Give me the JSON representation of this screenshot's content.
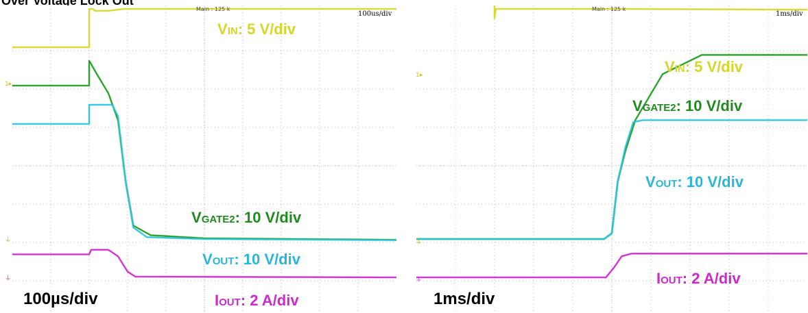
{
  "page_title": "Over Voltage Lock Out",
  "chart_data": [
    {
      "type": "line",
      "title": "",
      "header": {
        "main": "Main : 125 k",
        "time_per_div": "100us/div"
      },
      "timebase_label": "100µs/div",
      "x": {
        "unit": "div",
        "range": [
          0,
          10
        ]
      },
      "y": {
        "unit": "div",
        "range": [
          0,
          8
        ]
      },
      "grid": true,
      "series": [
        {
          "name": "VIN: 5 V/div",
          "label_main": "V",
          "label_sub": "IN",
          "label_tail": ": 5 V/div",
          "color": "#d6d629",
          "points": [
            [
              0,
              6.0
            ],
            [
              2.0,
              6.0
            ],
            [
              2.0,
              7.0
            ],
            [
              2.1,
              7.0
            ],
            [
              2.15,
              6.95
            ],
            [
              2.5,
              6.95
            ],
            [
              2.9,
              7.0
            ],
            [
              10,
              7.0
            ]
          ]
        },
        {
          "name": "VGATE2: 10 V/div",
          "label_main": "V",
          "label_sub": "GATE2",
          "label_tail": ": 10 V/div",
          "color": "#1f9a1f",
          "points": [
            [
              0,
              5.0
            ],
            [
              2.0,
              5.0
            ],
            [
              2.0,
              5.65
            ],
            [
              2.2,
              5.3
            ],
            [
              2.5,
              4.8
            ],
            [
              2.75,
              4.1
            ],
            [
              2.95,
              2.5
            ],
            [
              3.15,
              1.35
            ],
            [
              3.6,
              1.1
            ],
            [
              5,
              1.02
            ],
            [
              10,
              0.98
            ]
          ]
        },
        {
          "name": "VOUT: 10 V/div",
          "label_main": "V",
          "label_sub": "OUT",
          "label_tail": ": 10 V/div",
          "color": "#29c3d9",
          "points": [
            [
              0,
              4.0
            ],
            [
              2.0,
              4.0
            ],
            [
              2.0,
              4.5
            ],
            [
              2.6,
              4.5
            ],
            [
              2.75,
              4.2
            ],
            [
              2.95,
              2.5
            ],
            [
              3.15,
              1.3
            ],
            [
              3.5,
              1.05
            ],
            [
              5,
              1.0
            ],
            [
              10,
              0.97
            ]
          ]
        },
        {
          "name": "IOUT: 2 A/div",
          "label_main": "I",
          "label_sub": "OUT",
          "label_tail": ": 2 A/div",
          "color": "#cc28cc",
          "points": [
            [
              0,
              0.6
            ],
            [
              2.0,
              0.6
            ],
            [
              2.05,
              0.72
            ],
            [
              2.5,
              0.72
            ],
            [
              2.75,
              0.55
            ],
            [
              3.0,
              0.15
            ],
            [
              3.2,
              0.02
            ],
            [
              10,
              0.0
            ]
          ]
        }
      ]
    },
    {
      "type": "line",
      "title": "",
      "header": {
        "main": "Main : 125 k",
        "time_per_div": "1ms/div"
      },
      "timebase_label": "1ms/div",
      "x": {
        "unit": "div",
        "range": [
          0,
          10
        ]
      },
      "y": {
        "unit": "div",
        "range": [
          0,
          8
        ]
      },
      "grid": true,
      "series": [
        {
          "name": "VIN: 5 V/div",
          "label_main": "V",
          "label_sub": "IN",
          "label_tail": ": 5 V/div",
          "color": "#d6d629",
          "points": [
            [
              0,
              7.0
            ],
            [
              2.0,
              7.0
            ],
            [
              2.0,
              5.75
            ],
            [
              2.03,
              6.0
            ],
            [
              5,
              6.0
            ],
            [
              10,
              5.98
            ]
          ]
        },
        {
          "name": "VGATE2: 10 V/div",
          "label_main": "V",
          "label_sub": "GATE2",
          "label_tail": ": 10 V/div",
          "color": "#1f9a1f",
          "points": [
            [
              0,
              0.0
            ],
            [
              4.8,
              0.0
            ],
            [
              5.0,
              0.15
            ],
            [
              5.15,
              1.5
            ],
            [
              5.35,
              2.3
            ],
            [
              5.6,
              3.1
            ],
            [
              6.3,
              4.3
            ],
            [
              7.3,
              4.8
            ],
            [
              10,
              4.8
            ]
          ]
        },
        {
          "name": "VOUT: 10 V/div",
          "label_main": "V",
          "label_sub": "OUT",
          "label_tail": ": 10 V/div",
          "color": "#29c3d9",
          "points": [
            [
              0,
              0.0
            ],
            [
              4.8,
              0.0
            ],
            [
              5.0,
              0.15
            ],
            [
              5.15,
              1.5
            ],
            [
              5.35,
              2.4
            ],
            [
              5.55,
              3.05
            ],
            [
              5.8,
              3.1
            ],
            [
              10,
              3.1
            ]
          ]
        },
        {
          "name": "IOUT: 2 A/div",
          "label_main": "I",
          "label_sub": "OUT",
          "label_tail": ": 2 A/div",
          "color": "#cc28cc",
          "points": [
            [
              0,
              -1.0
            ],
            [
              4.85,
              -1.0
            ],
            [
              5.05,
              -0.75
            ],
            [
              5.25,
              -0.45
            ],
            [
              5.5,
              -0.38
            ],
            [
              10,
              -0.38
            ]
          ]
        }
      ]
    }
  ],
  "markers": {
    "trigger": "1▸",
    "ground": "⏚"
  }
}
